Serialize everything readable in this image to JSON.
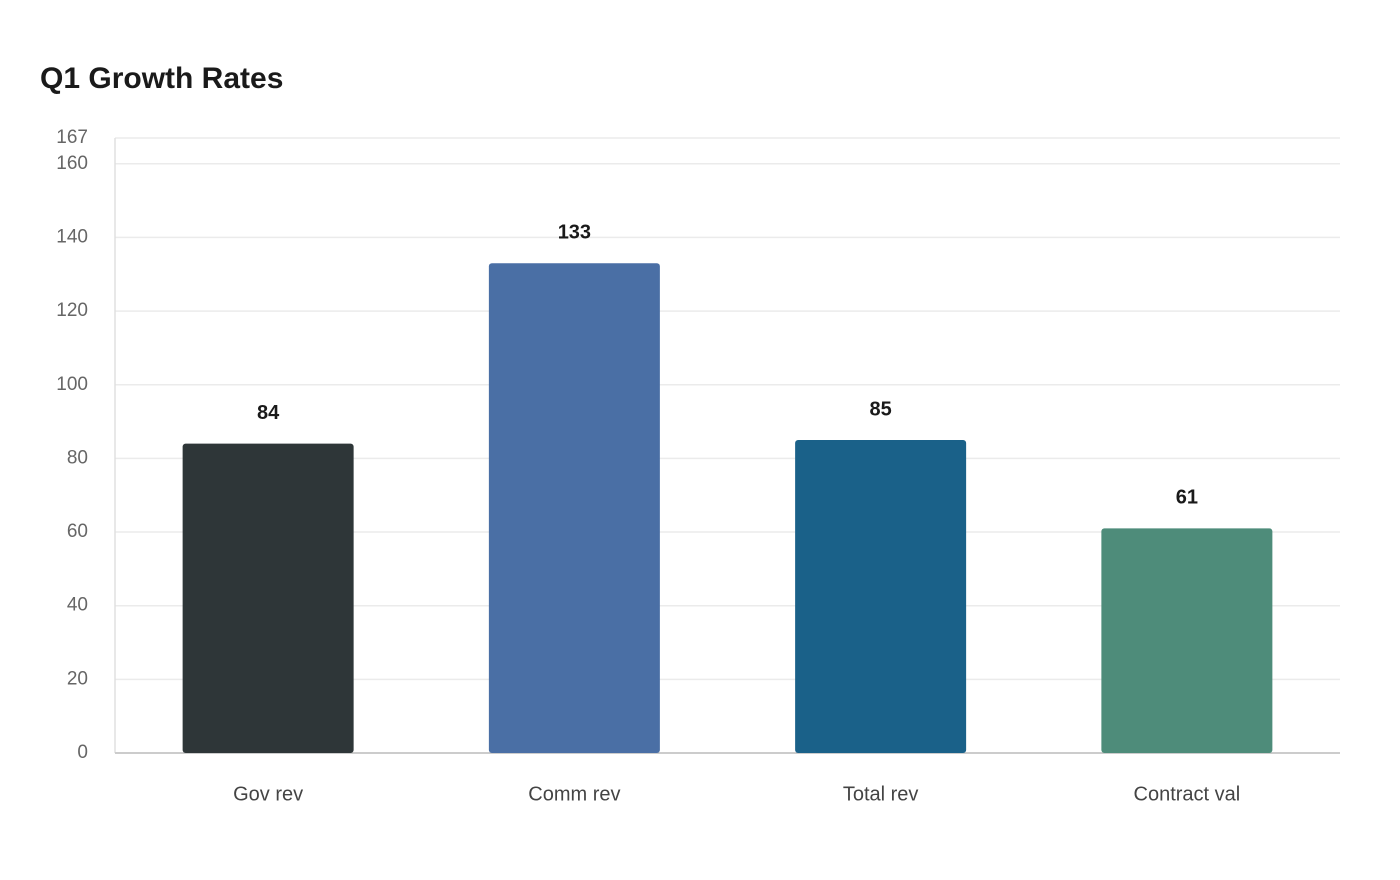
{
  "chart_data": {
    "type": "bar",
    "title": "Q1 Growth Rates",
    "categories": [
      "Gov rev",
      "Comm rev",
      "Total rev",
      "Contract val"
    ],
    "values": [
      84,
      133,
      85,
      61
    ],
    "colors": [
      "#2e3638",
      "#4a6fa5",
      "#1a6189",
      "#4e8c7a"
    ],
    "ylim": [
      0,
      167
    ],
    "yticks": [
      0,
      20,
      40,
      60,
      80,
      100,
      120,
      140,
      160,
      167
    ],
    "grid": true
  }
}
